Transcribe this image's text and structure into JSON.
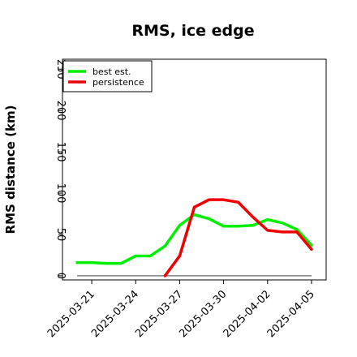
{
  "chart_data": {
    "type": "line",
    "title": "RMS, ice edge",
    "xlabel": "",
    "ylabel": "RMS distance (km)",
    "ylim": [
      -5,
      262
    ],
    "yticks": [
      0,
      50,
      100,
      150,
      200,
      250
    ],
    "x": [
      "2025-03-20",
      "2025-03-21",
      "2025-03-22",
      "2025-03-23",
      "2025-03-24",
      "2025-03-25",
      "2025-03-26",
      "2025-03-27",
      "2025-03-28",
      "2025-03-29",
      "2025-03-30",
      "2025-03-31",
      "2025-04-01",
      "2025-04-02",
      "2025-04-03",
      "2025-04-04",
      "2025-04-05"
    ],
    "xticks": [
      "2025-03-21",
      "2025-03-24",
      "2025-03-27",
      "2025-03-30",
      "2025-04-02",
      "2025-04-05"
    ],
    "xlim": [
      "2025-03-19",
      "2025-04-06"
    ],
    "legend_position": "upper-left",
    "series": [
      {
        "name": "best est.",
        "color": "#00ee00",
        "x": [
          "2025-03-20",
          "2025-03-21",
          "2025-03-22",
          "2025-03-23",
          "2025-03-24",
          "2025-03-25",
          "2025-03-26",
          "2025-03-27",
          "2025-03-28",
          "2025-03-29",
          "2025-03-30",
          "2025-03-31",
          "2025-04-01",
          "2025-04-02",
          "2025-04-03",
          "2025-04-04",
          "2025-04-05"
        ],
        "values": [
          16,
          16,
          15,
          15,
          24,
          24,
          36,
          61,
          74,
          69,
          60,
          60,
          61,
          68,
          64,
          56,
          37
        ]
      },
      {
        "name": "persistence",
        "color": "#ee0000",
        "x": [
          "2025-03-26",
          "2025-03-27",
          "2025-03-28",
          "2025-03-29",
          "2025-03-30",
          "2025-03-31",
          "2025-04-01",
          "2025-04-02",
          "2025-04-03",
          "2025-04-04",
          "2025-04-05"
        ],
        "values": [
          0,
          24,
          83,
          92,
          92,
          89,
          71,
          55,
          53,
          53,
          32
        ]
      }
    ],
    "reference_line": {
      "value": 0,
      "color": "#666666",
      "from": "2025-03-20",
      "to": "2025-04-05"
    }
  }
}
